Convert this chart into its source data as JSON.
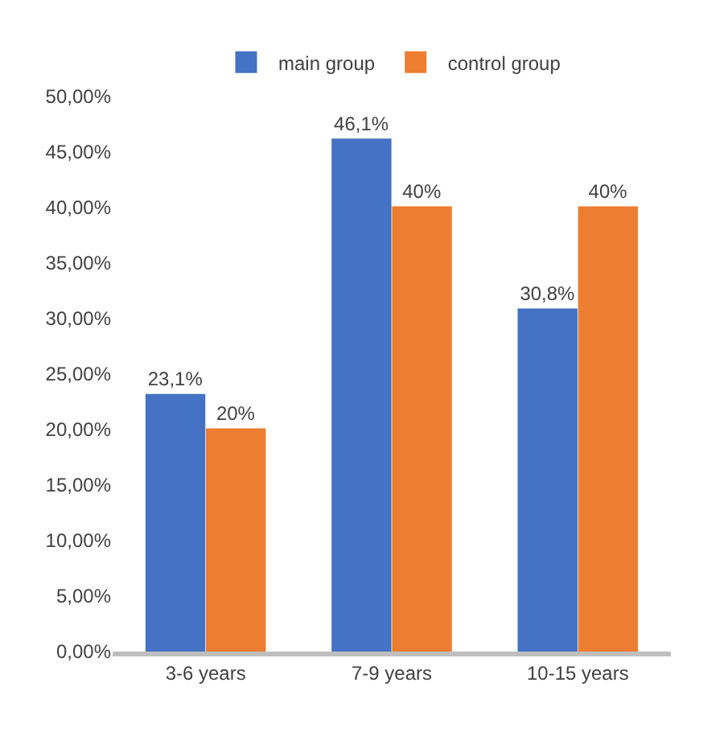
{
  "chart_data": {
    "type": "bar",
    "categories": [
      "3-6 years",
      "7-9 years",
      "10-15 years"
    ],
    "series": [
      {
        "name": "main group",
        "color": "#4472c4",
        "values": [
          23.1,
          46.1,
          30.8
        ],
        "value_labels": [
          "23,1%",
          "46,1%",
          "30,8%"
        ]
      },
      {
        "name": "control group",
        "color": "#ed7d31",
        "values": [
          20,
          40,
          40
        ],
        "value_labels": [
          "20%",
          "40%",
          "40%"
        ]
      }
    ],
    "ylim": [
      0,
      50
    ],
    "yticks": [
      {
        "value": 0,
        "label": "0,00%"
      },
      {
        "value": 5,
        "label": "5,00%"
      },
      {
        "value": 10,
        "label": "10,00%"
      },
      {
        "value": 15,
        "label": "15,00%"
      },
      {
        "value": 20,
        "label": "20,00%"
      },
      {
        "value": 25,
        "label": "25,00%"
      },
      {
        "value": 30,
        "label": "30,00%"
      },
      {
        "value": 35,
        "label": "35,00%"
      },
      {
        "value": 40,
        "label": "40,00%"
      },
      {
        "value": 45,
        "label": "45,00%"
      },
      {
        "value": 50,
        "label": "50,00%"
      }
    ],
    "grid": false,
    "legend": "top"
  }
}
